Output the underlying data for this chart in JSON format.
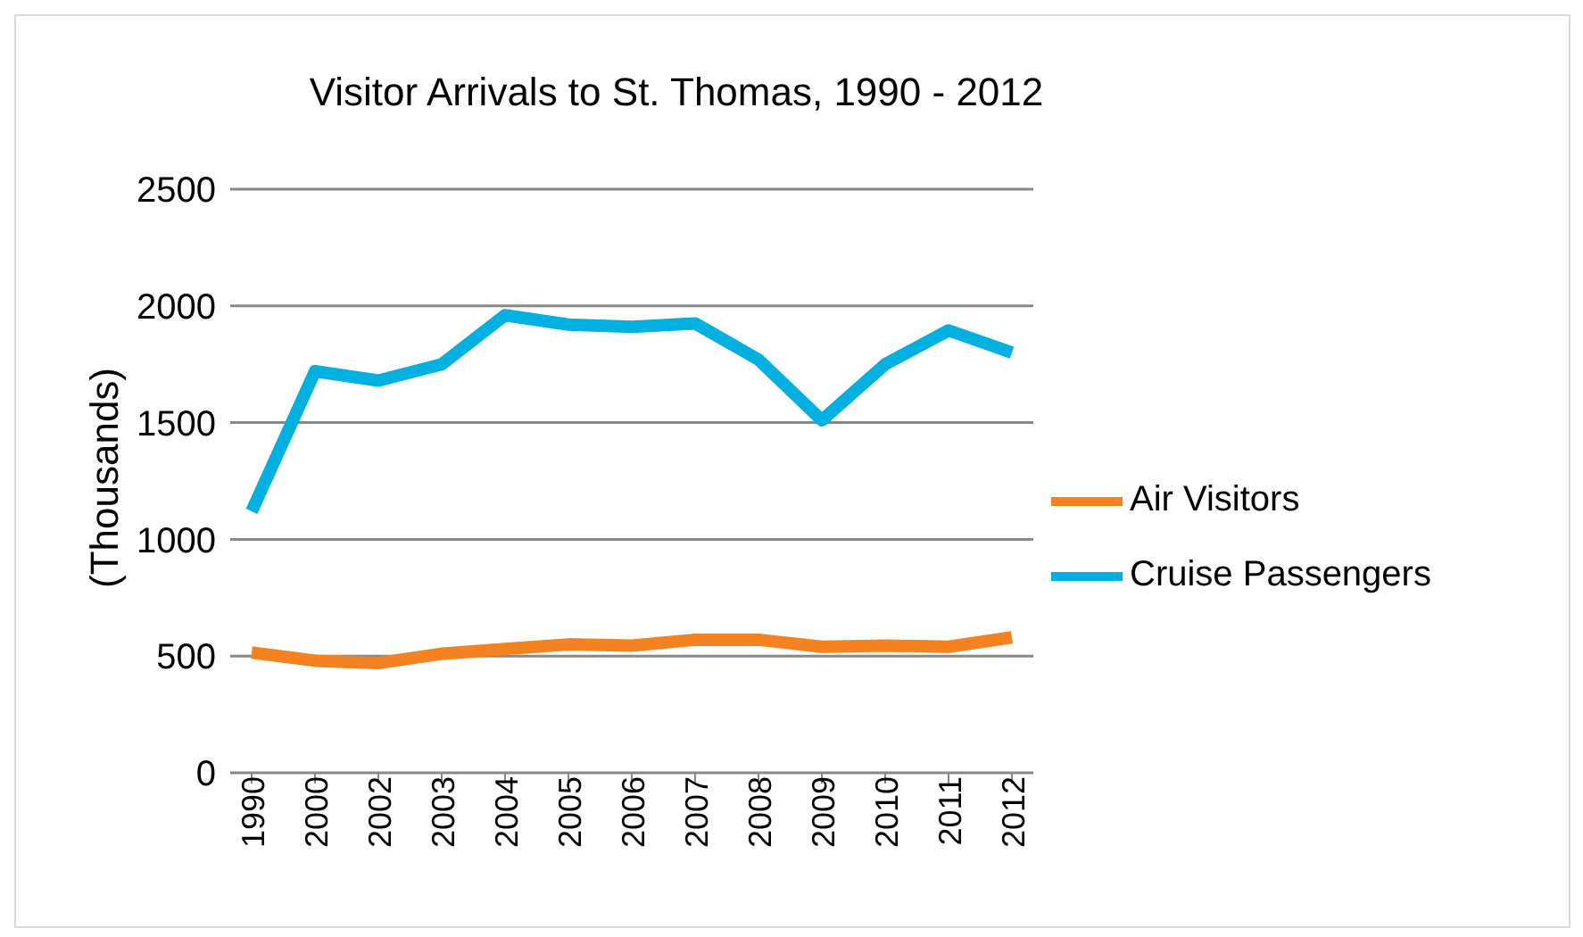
{
  "chart_data": {
    "type": "line",
    "title": "Visitor Arrivals to St. Thomas, 1990 - 2012",
    "ylabel": "(Thousands)",
    "categories": [
      "1990",
      "2000",
      "2002",
      "2003",
      "2004",
      "2005",
      "2006",
      "2007",
      "2008",
      "2009",
      "2010",
      "2011",
      "2012"
    ],
    "series": [
      {
        "name": "Air Visitors",
        "color": "#f58220",
        "values": [
          515,
          480,
          470,
          510,
          530,
          550,
          545,
          570,
          570,
          540,
          545,
          540,
          580
        ]
      },
      {
        "name": "Cruise Passengers",
        "color": "#00b0e0",
        "values": [
          1120,
          1720,
          1680,
          1750,
          1960,
          1920,
          1910,
          1925,
          1770,
          1510,
          1750,
          1895,
          1800
        ]
      }
    ],
    "ylim": [
      0,
      2500
    ],
    "yticks": [
      0,
      500,
      1000,
      1500,
      2000,
      2500
    ],
    "grid": "y",
    "legend": "right",
    "marker": "none",
    "line_style": "solid"
  }
}
